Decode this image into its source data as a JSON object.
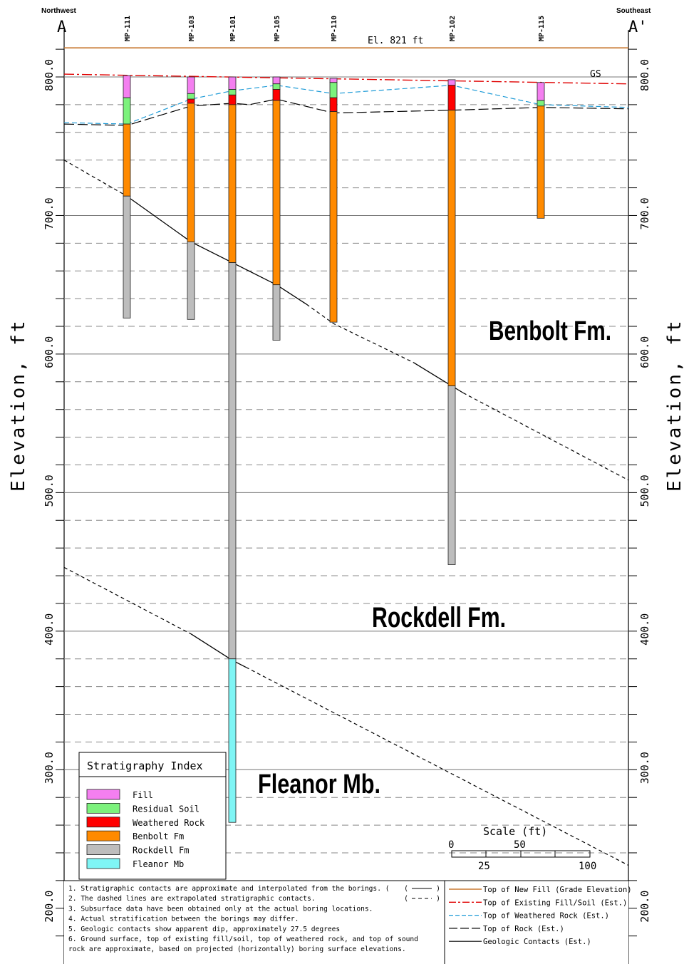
{
  "header": {
    "left_dir": "Northwest",
    "right_dir": "Southeast",
    "left_letter": "A",
    "right_letter": "A'",
    "grade_label": "El. 821 ft",
    "gs_label": "GS"
  },
  "axis": {
    "label": "Elevation, ft",
    "ylim": [
      175,
      825
    ],
    "ticks": [
      {
        "v": 800,
        "label": "800.0"
      },
      {
        "v": 700,
        "label": "700.0"
      },
      {
        "v": 600,
        "label": "600.0"
      },
      {
        "v": 500,
        "label": "500.0"
      },
      {
        "v": 400,
        "label": "400.0"
      },
      {
        "v": 300,
        "label": "300.0"
      },
      {
        "v": 200,
        "label": "200.0"
      }
    ],
    "gridlines": [
      780,
      760,
      740,
      720,
      680,
      660,
      640,
      620,
      580,
      560,
      540,
      520,
      480,
      460,
      440,
      420,
      380,
      360,
      340,
      320,
      280,
      260,
      240
    ]
  },
  "elevations": {
    "grade": 821,
    "existing_fill": [
      802,
      795
    ],
    "weathered_rock": [
      767,
      766,
      784,
      790,
      794,
      788,
      794,
      780,
      778
    ],
    "top_rock": [
      766,
      765,
      779,
      781,
      780,
      784,
      774,
      776,
      778,
      777
    ],
    "geo_upper": [
      740,
      714,
      681,
      666,
      650,
      622,
      577,
      509
    ],
    "geo_lower": [
      446,
      398,
      379,
      231
    ]
  },
  "borings": [
    {
      "name": "MP-111",
      "layers": [
        {
          "u": "fill",
          "top": 801,
          "bot": 785
        },
        {
          "u": "residual",
          "top": 785,
          "bot": 766
        },
        {
          "u": "benbolt",
          "top": 766,
          "bot": 714
        },
        {
          "u": "rockdell",
          "top": 714,
          "bot": 626
        }
      ]
    },
    {
      "name": "MP-103",
      "layers": [
        {
          "u": "fill",
          "top": 800,
          "bot": 788
        },
        {
          "u": "residual",
          "top": 788,
          "bot": 784
        },
        {
          "u": "weathered",
          "top": 784,
          "bot": 781
        },
        {
          "u": "benbolt",
          "top": 781,
          "bot": 681
        },
        {
          "u": "rockdell",
          "top": 681,
          "bot": 625
        }
      ]
    },
    {
      "name": "MP-101",
      "layers": [
        {
          "u": "fill",
          "top": 800,
          "bot": 791
        },
        {
          "u": "residual",
          "top": 791,
          "bot": 787
        },
        {
          "u": "weathered",
          "top": 787,
          "bot": 780
        },
        {
          "u": "benbolt",
          "top": 780,
          "bot": 666
        },
        {
          "u": "rockdell",
          "top": 666,
          "bot": 380
        },
        {
          "u": "fleanor",
          "top": 380,
          "bot": 262
        }
      ]
    },
    {
      "name": "MP-105",
      "layers": [
        {
          "u": "fill",
          "top": 800,
          "bot": 795
        },
        {
          "u": "residual",
          "top": 795,
          "bot": 791
        },
        {
          "u": "weathered",
          "top": 791,
          "bot": 783
        },
        {
          "u": "benbolt",
          "top": 783,
          "bot": 650
        },
        {
          "u": "rockdell",
          "top": 650,
          "bot": 610
        }
      ]
    },
    {
      "name": "MP-110",
      "layers": [
        {
          "u": "fill",
          "top": 799,
          "bot": 796
        },
        {
          "u": "residual",
          "top": 796,
          "bot": 785
        },
        {
          "u": "weathered",
          "top": 785,
          "bot": 775
        },
        {
          "u": "benbolt",
          "top": 775,
          "bot": 623
        }
      ]
    },
    {
      "name": "MP-102",
      "layers": [
        {
          "u": "fill",
          "top": 798,
          "bot": 794
        },
        {
          "u": "weathered",
          "top": 794,
          "bot": 776
        },
        {
          "u": "benbolt",
          "top": 776,
          "bot": 577
        },
        {
          "u": "rockdell",
          "top": 577,
          "bot": 448
        }
      ]
    },
    {
      "name": "MP-115",
      "layers": [
        {
          "u": "fill",
          "top": 796,
          "bot": 783
        },
        {
          "u": "residual",
          "top": 783,
          "bot": 779
        },
        {
          "u": "benbolt",
          "top": 779,
          "bot": 698
        }
      ]
    }
  ],
  "formations": [
    "Benbolt Fm.",
    "Rockdell Fm.",
    "Fleanor Mb."
  ],
  "legend": {
    "title": "Stratigraphy Index",
    "items": [
      {
        "key": "fill",
        "label": "Fill",
        "color": "#f47ff0"
      },
      {
        "key": "residual",
        "label": "Residual Soil",
        "color": "#7cf27c"
      },
      {
        "key": "weathered",
        "label": "Weathered Rock",
        "color": "#ff0000"
      },
      {
        "key": "benbolt",
        "label": "Benbolt Fm",
        "color": "#ff8a00"
      },
      {
        "key": "rockdell",
        "label": "Rockdell Fm",
        "color": "#bdbdbd"
      },
      {
        "key": "fleanor",
        "label": "Fleanor Mb",
        "color": "#7ff5f5"
      }
    ]
  },
  "scale": {
    "title": "Scale (ft)",
    "labels_top": [
      "0",
      "50"
    ],
    "labels_bottom": [
      "25",
      "100"
    ]
  },
  "notes": [
    "1. Stratigraphic contacts are approximate and interpolated from the borings. (",
    "2. The dashed lines are extrapolated stratigraphic contacts.",
    "3. Subsurface data have been obtained only at the actual boring locations.",
    "4. Actual stratification between the borings may differ.",
    "5. Geologic contacts show apparent dip, approximately 27.5 degrees",
    "6. Ground surface, top of existing fill/soil, top of weathered rock, and top of sound",
    "   rock are approximate, based on projected (horizontally) boring surface elevations."
  ],
  "line_legend": [
    {
      "label": "Top of New Fill (Grade Elevation)",
      "color": "#c87830"
    },
    {
      "label": "Top of Existing Fill/Soil (Est.)",
      "color": "#e00000"
    },
    {
      "label": "Top of Weathered Rock (Est.)",
      "color": "#1e9bd7"
    },
    {
      "label": "Top of Rock (Est.)",
      "color": "#000000"
    },
    {
      "label": "Geologic Contacts (Est.)",
      "color": "#000000"
    }
  ]
}
